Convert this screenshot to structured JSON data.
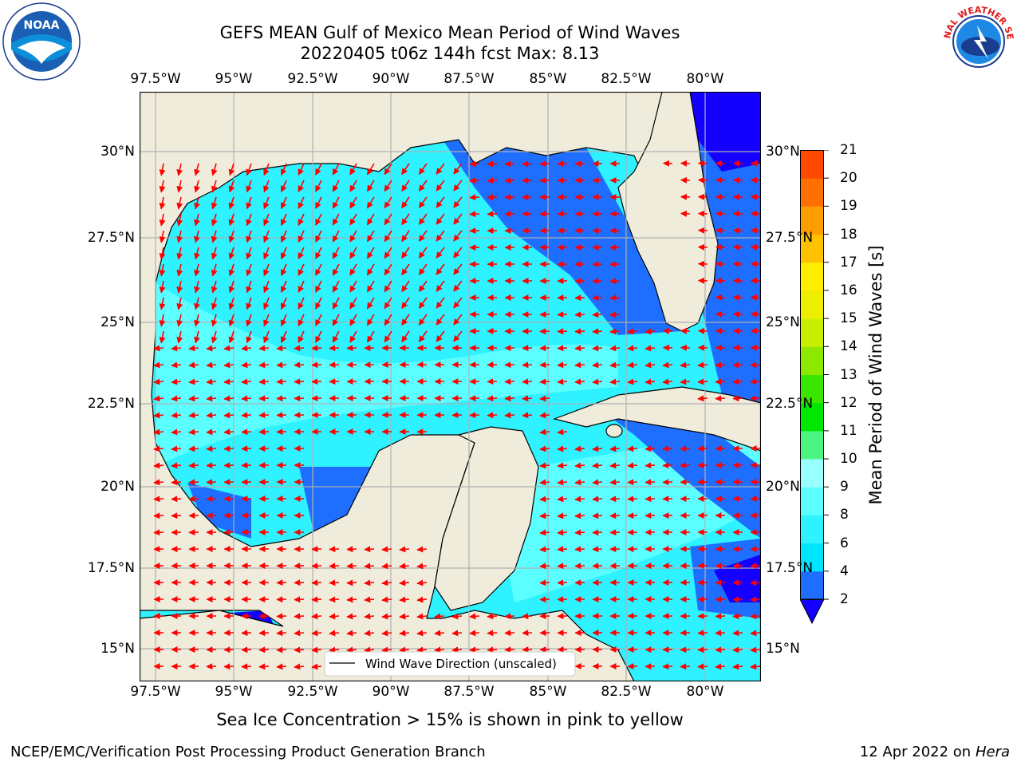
{
  "title_line1": "GEFS MEAN Gulf of Mexico Mean Period of Wind Waves",
  "title_line2": "20220405 t06z 144h fcst   Max: 8.13",
  "lon_labels": [
    "97.5°W",
    "95°W",
    "92.5°W",
    "90°W",
    "87.5°W",
    "85°W",
    "82.5°W",
    "80°W"
  ],
  "lat_labels": [
    "30°N",
    "27.5°N",
    "25°N",
    "22.5°N",
    "20°N",
    "17.5°N",
    "15°N"
  ],
  "legend_label": "Wind Wave Direction (unscaled)",
  "colorbar": {
    "title": "Mean Period of Wind Waves [s]",
    "ticks": [
      "2",
      "4",
      "6",
      "8",
      "9",
      "10",
      "11",
      "12",
      "13",
      "14",
      "15",
      "16",
      "17",
      "18",
      "19",
      "20",
      "21"
    ],
    "colors": [
      "#1e6eff",
      "#00e5ff",
      "#2ef2ff",
      "#5cffff",
      "#99ffff",
      "#4cf582",
      "#00e700",
      "#3ae600",
      "#8ee800",
      "#c8ef00",
      "#eeee00",
      "#ffee00",
      "#ffc200",
      "#ff9e00",
      "#ff7000",
      "#ff4800",
      "#ff1e00"
    ],
    "extend_color": "#1400ff"
  },
  "note": "Sea Ice Concentration > 15% is shown in pink to yellow",
  "footer_left": "NCEP/EMC/Verification Post Processing Product Generation Branch",
  "footer_right_date": "12 Apr 2022 on ",
  "footer_right_machine": "Hera",
  "logos": {
    "noaa_text": "NOAA",
    "nws_text": "NATIONAL WEATHER SERVICE"
  },
  "colors": {
    "land": "#efecdc",
    "coast": "#000000",
    "arrow": "#ff0000",
    "grid": "#b0b0b0"
  }
}
